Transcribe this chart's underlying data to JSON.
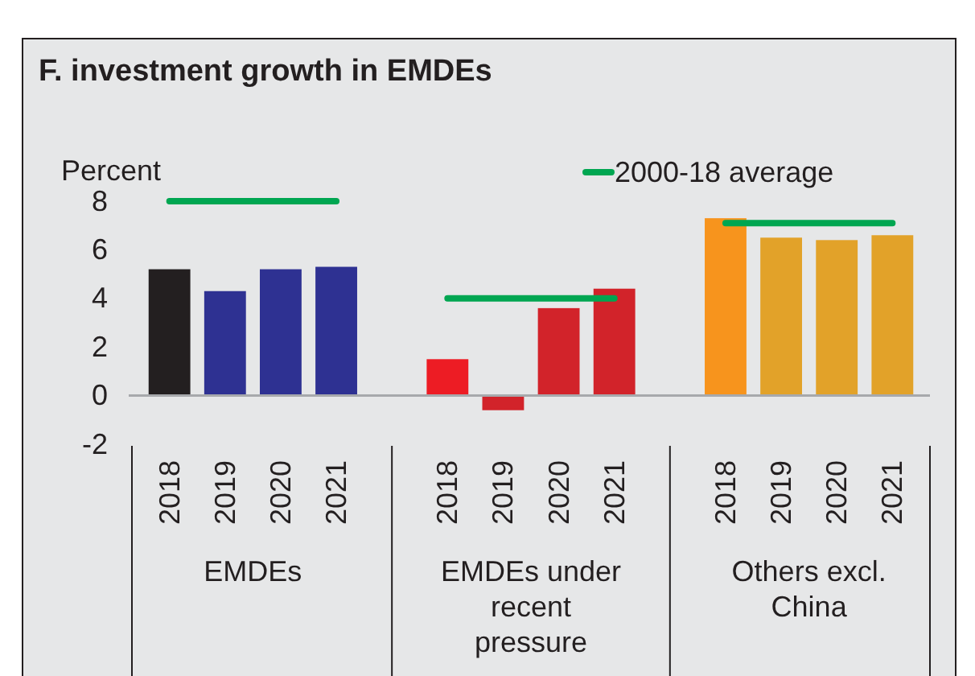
{
  "chart_data": {
    "type": "bar",
    "title": "F. investment growth in EMDEs",
    "ylabel": "Percent",
    "categories": [
      "2018",
      "2019",
      "2020",
      "2021",
      "2018",
      "2019",
      "2020",
      "2021",
      "2018",
      "2019",
      "2020",
      "2021"
    ],
    "series": [
      {
        "colors": [
          "#231f20",
          "#2e3192",
          "#2e3192",
          "#2e3192",
          "#ed1c24",
          "#d2232a",
          "#d2232a",
          "#d2232a",
          "#f7941d",
          "#e2a229",
          "#e2a229",
          "#e2a229"
        ],
        "values": [
          5.2,
          4.3,
          5.2,
          5.3,
          1.5,
          -0.6,
          3.6,
          4.4,
          7.3,
          6.5,
          6.4,
          6.6
        ]
      },
      {
        "type": "line",
        "name": "2000-18 average",
        "color": "#00a651",
        "values": [
          8.0,
          8.0,
          8.0,
          8.0,
          4.0,
          4.0,
          4.0,
          4.0,
          7.1,
          7.1,
          7.1,
          7.1
        ]
      }
    ],
    "ylim": [
      -2,
      8
    ],
    "yticks": [
      -2,
      0,
      2,
      4,
      6,
      8
    ],
    "legend": "top right",
    "annotations": [
      "EMDEs",
      "EMDEs under recent pressure",
      "Others excl. China"
    ]
  }
}
